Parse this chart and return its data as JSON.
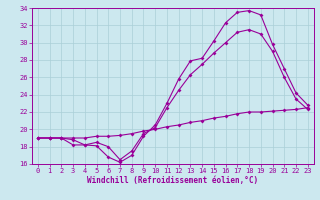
{
  "xlabel": "Windchill (Refroidissement éolien,°C)",
  "ylabel": "",
  "xlim": [
    -0.5,
    23.5
  ],
  "ylim": [
    16,
    34
  ],
  "xticks": [
    0,
    1,
    2,
    3,
    4,
    5,
    6,
    7,
    8,
    9,
    10,
    11,
    12,
    13,
    14,
    15,
    16,
    17,
    18,
    19,
    20,
    21,
    22,
    23
  ],
  "yticks": [
    16,
    18,
    20,
    22,
    24,
    26,
    28,
    30,
    32,
    34
  ],
  "bg_color": "#cce8ef",
  "grid_color": "#aacfd8",
  "line_color": "#990099",
  "line1": [
    19.0,
    19.0,
    19.0,
    18.2,
    18.2,
    18.1,
    16.8,
    16.2,
    17.0,
    19.2,
    20.5,
    23.0,
    25.8,
    27.9,
    28.2,
    30.2,
    32.3,
    33.5,
    33.7,
    33.2,
    29.8,
    27.0,
    24.2,
    22.8
  ],
  "line2": [
    19.0,
    19.0,
    19.0,
    18.8,
    18.2,
    18.5,
    18.0,
    16.5,
    17.5,
    19.5,
    20.2,
    22.5,
    24.5,
    26.3,
    27.5,
    28.8,
    30.0,
    31.2,
    31.5,
    31.0,
    29.0,
    26.0,
    23.5,
    22.3
  ],
  "line3": [
    19.0,
    19.0,
    19.0,
    19.0,
    19.0,
    19.2,
    19.2,
    19.3,
    19.5,
    19.8,
    20.0,
    20.3,
    20.5,
    20.8,
    21.0,
    21.3,
    21.5,
    21.8,
    22.0,
    22.0,
    22.1,
    22.2,
    22.3,
    22.5
  ],
  "tick_fontsize": 5.0,
  "xlabel_fontsize": 5.5,
  "marker_size": 2.0,
  "line_width": 0.8
}
